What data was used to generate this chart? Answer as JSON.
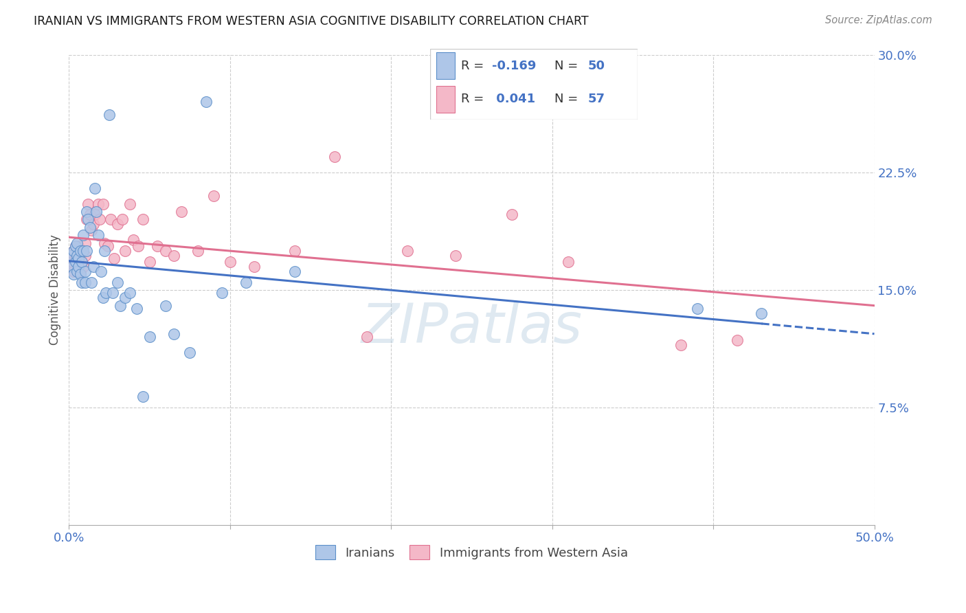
{
  "title": "IRANIAN VS IMMIGRANTS FROM WESTERN ASIA COGNITIVE DISABILITY CORRELATION CHART",
  "source": "Source: ZipAtlas.com",
  "ylabel": "Cognitive Disability",
  "xlim": [
    0.0,
    0.5
  ],
  "ylim": [
    0.0,
    0.3
  ],
  "xtick_positions": [
    0.0,
    0.1,
    0.2,
    0.3,
    0.4,
    0.5
  ],
  "xticklabels": [
    "0.0%",
    "",
    "",
    "",
    "",
    "50.0%"
  ],
  "yticks_right": [
    0.075,
    0.15,
    0.225,
    0.3
  ],
  "ytick_right_labels": [
    "7.5%",
    "15.0%",
    "22.5%",
    "30.0%"
  ],
  "legend_labels": [
    "Iranians",
    "Immigrants from Western Asia"
  ],
  "iranians_color": "#aec6e8",
  "immigrants_color": "#f4b8c8",
  "iranians_edge_color": "#5b8fc9",
  "immigrants_edge_color": "#e07090",
  "iranians_line_color": "#4472c4",
  "immigrants_line_color": "#e07090",
  "R_iranians": -0.169,
  "N_iranians": 50,
  "R_immigrants": 0.041,
  "N_immigrants": 57,
  "background_color": "#ffffff",
  "grid_color": "#cccccc",
  "watermark": "ZIPatlas",
  "iranians_scatter_x": [
    0.001,
    0.002,
    0.003,
    0.003,
    0.004,
    0.004,
    0.005,
    0.005,
    0.005,
    0.006,
    0.006,
    0.007,
    0.007,
    0.008,
    0.008,
    0.009,
    0.009,
    0.01,
    0.01,
    0.011,
    0.011,
    0.012,
    0.013,
    0.014,
    0.015,
    0.016,
    0.017,
    0.018,
    0.02,
    0.021,
    0.022,
    0.023,
    0.025,
    0.027,
    0.03,
    0.032,
    0.035,
    0.038,
    0.042,
    0.046,
    0.05,
    0.06,
    0.065,
    0.075,
    0.085,
    0.095,
    0.11,
    0.14,
    0.39,
    0.43
  ],
  "iranians_scatter_y": [
    0.172,
    0.165,
    0.16,
    0.175,
    0.168,
    0.178,
    0.172,
    0.162,
    0.18,
    0.17,
    0.165,
    0.175,
    0.16,
    0.155,
    0.168,
    0.175,
    0.185,
    0.162,
    0.155,
    0.175,
    0.2,
    0.195,
    0.19,
    0.155,
    0.165,
    0.215,
    0.2,
    0.185,
    0.162,
    0.145,
    0.175,
    0.148,
    0.262,
    0.148,
    0.155,
    0.14,
    0.145,
    0.148,
    0.138,
    0.082,
    0.12,
    0.14,
    0.122,
    0.11,
    0.27,
    0.148,
    0.155,
    0.162,
    0.138,
    0.135
  ],
  "immigrants_scatter_x": [
    0.001,
    0.001,
    0.002,
    0.002,
    0.003,
    0.003,
    0.004,
    0.004,
    0.005,
    0.005,
    0.006,
    0.006,
    0.007,
    0.007,
    0.008,
    0.008,
    0.009,
    0.01,
    0.01,
    0.011,
    0.012,
    0.013,
    0.014,
    0.015,
    0.016,
    0.018,
    0.019,
    0.021,
    0.022,
    0.024,
    0.026,
    0.028,
    0.03,
    0.033,
    0.035,
    0.038,
    0.04,
    0.043,
    0.046,
    0.05,
    0.055,
    0.06,
    0.065,
    0.07,
    0.08,
    0.09,
    0.1,
    0.115,
    0.14,
    0.165,
    0.185,
    0.21,
    0.24,
    0.275,
    0.31,
    0.38,
    0.415
  ],
  "immigrants_scatter_y": [
    0.17,
    0.165,
    0.172,
    0.168,
    0.175,
    0.162,
    0.17,
    0.178,
    0.168,
    0.175,
    0.165,
    0.178,
    0.172,
    0.162,
    0.168,
    0.175,
    0.165,
    0.172,
    0.18,
    0.195,
    0.205,
    0.198,
    0.188,
    0.192,
    0.198,
    0.205,
    0.195,
    0.205,
    0.18,
    0.178,
    0.195,
    0.17,
    0.192,
    0.195,
    0.175,
    0.205,
    0.182,
    0.178,
    0.195,
    0.168,
    0.178,
    0.175,
    0.172,
    0.2,
    0.175,
    0.21,
    0.168,
    0.165,
    0.175,
    0.235,
    0.12,
    0.175,
    0.172,
    0.198,
    0.168,
    0.115,
    0.118
  ]
}
